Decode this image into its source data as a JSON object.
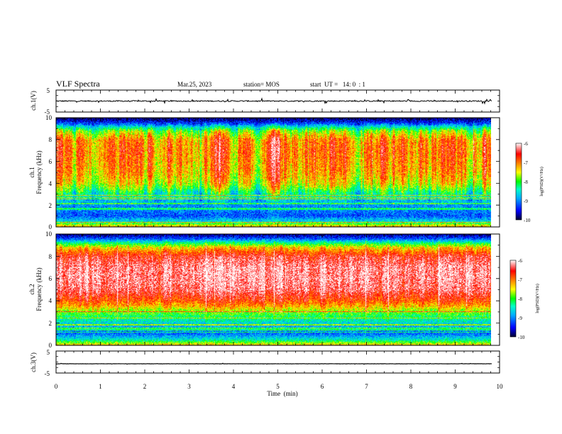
{
  "header": {
    "title": "VLF Spectra",
    "date": "Mar.25, 2023",
    "station": "station= MOS",
    "start_ut": "start  UT =   14: 0  : 1"
  },
  "colors": {
    "background": "#ffffff",
    "axis": "#000000",
    "trace": "#000000",
    "colormap": [
      "#000030",
      "#0000ff",
      "#00aaff",
      "#00ffc8",
      "#00ff00",
      "#ffff00",
      "#ff8000",
      "#ff0000",
      "#ffffff"
    ]
  },
  "chart_data": [
    {
      "type": "line",
      "name": "ch1-voltage",
      "ylabel": "ch.1(V)",
      "yticks": [
        "5",
        "-5"
      ],
      "ylim": [
        -5,
        5
      ],
      "x_range": [
        0,
        9.83
      ],
      "level": 0,
      "description_of_values": "nearly constant trace near 0 V with small noise"
    },
    {
      "type": "heatmap",
      "name": "ch1-spectrogram",
      "ylabel": "ch.1\nFrequency (kHz)",
      "ylabel_line1": "ch.1",
      "ylabel_line2": "Frequency (kHz)",
      "ylim": [
        0,
        10
      ],
      "yticks": [
        "0",
        "2",
        "4",
        "6",
        "8",
        "10"
      ],
      "x_range": [
        0,
        9.83
      ],
      "colorbar": {
        "label": "log(PSD)(V²/Hz)",
        "range": [
          -10,
          -6
        ],
        "ticks": [
          "-6",
          "-7",
          "-8",
          "-9",
          "-10"
        ]
      },
      "profile": {
        "freq_khz": [
          0,
          0.5,
          1,
          1.5,
          2,
          2.5,
          3,
          3.5,
          4,
          5,
          6,
          7,
          8,
          8.8,
          9.2,
          9.6,
          10
        ],
        "log_psd": [
          -7.2,
          -8.6,
          -9.2,
          -9.0,
          -8.9,
          -8.6,
          -8.2,
          -7.7,
          -7.3,
          -7.0,
          -6.9,
          -6.8,
          -6.9,
          -7.6,
          -8.5,
          -9.4,
          -9.9
        ]
      },
      "bursty": true
    },
    {
      "type": "heatmap",
      "name": "ch2-spectrogram",
      "ylabel": "ch.2\nFrequency (kHz)",
      "ylabel_line1": "ch.2",
      "ylabel_line2": "Frequency (kHz)",
      "ylim": [
        0,
        10
      ],
      "yticks": [
        "0",
        "2",
        "4",
        "6",
        "8",
        "10"
      ],
      "x_range": [
        0,
        9.83
      ],
      "colorbar": {
        "label": "log(PSD)(V²/Hz)",
        "range": [
          -10,
          -6
        ],
        "ticks": [
          "-6",
          "-7",
          "-8",
          "-9",
          "-10"
        ]
      },
      "profile": {
        "freq_khz": [
          0,
          0.5,
          1,
          1.5,
          2,
          2.5,
          3,
          3.5,
          4,
          5,
          6,
          7,
          8,
          8.8,
          9.2,
          9.6,
          10
        ],
        "log_psd": [
          -7.3,
          -8.5,
          -9.1,
          -8.9,
          -8.6,
          -8.2,
          -7.8,
          -7.2,
          -6.8,
          -6.3,
          -6.2,
          -6.2,
          -6.5,
          -7.3,
          -8.2,
          -9.2,
          -9.8
        ]
      },
      "bursty": false
    },
    {
      "type": "line",
      "name": "ch3-voltage",
      "ylabel": "ch.3(V)",
      "yticks": [
        "5",
        "-5"
      ],
      "ylim": [
        -5,
        5
      ],
      "x_range": [
        0,
        9.83
      ],
      "level": -0.8,
      "description_of_values": "flat trace slightly below 0 V"
    }
  ],
  "x_axis": {
    "label": "Time  (min)",
    "ticks": [
      "0",
      "1",
      "2",
      "3",
      "4",
      "5",
      "6",
      "7",
      "8",
      "9",
      "10"
    ],
    "xlim": [
      0,
      10
    ]
  }
}
